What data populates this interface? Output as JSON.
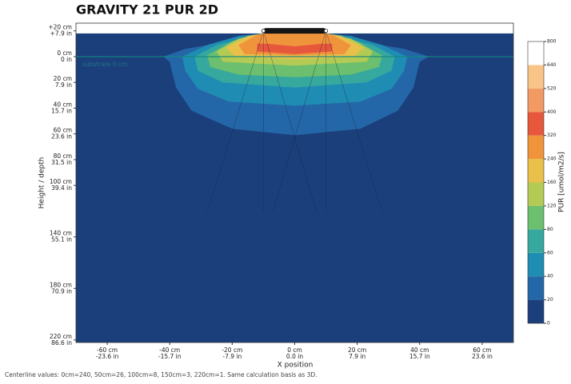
{
  "chart_data": {
    "type": "contour",
    "title": "GRAVITY 21 PUR 2D",
    "x_label": "X position",
    "y_label": "Height / depth",
    "colorbar_label": "PUR [umol/m2/s]",
    "annotation": "substrate 0 cm",
    "footnote": "Centerline values: 0cm=240, 50cm=26, 100cm=8, 150cm=3, 220cm=1. Same calculation basis as 3D.",
    "xlim": [
      -70,
      70
    ],
    "ylim": [
      -222,
      26
    ],
    "field_top": 18,
    "xticks": [
      {
        "value": -60,
        "label": "-60 cm",
        "inch_label": "-23.6 in"
      },
      {
        "value": -40,
        "label": "-40 cm",
        "inch_label": "-15.7 in"
      },
      {
        "value": -20,
        "label": "-20 cm",
        "inch_label": "-7.9 in"
      },
      {
        "value": 0,
        "label": "0 cm",
        "inch_label": "0.0 in"
      },
      {
        "value": 20,
        "label": "20 cm",
        "inch_label": "7.9 in"
      },
      {
        "value": 40,
        "label": "40 cm",
        "inch_label": "15.7 in"
      },
      {
        "value": 60,
        "label": "60 cm",
        "inch_label": "23.6 in"
      }
    ],
    "yticks": [
      {
        "value": 20,
        "label": "+20 cm",
        "inch_label": "+7.9 in"
      },
      {
        "value": 0,
        "label": "0 cm",
        "inch_label": "0 in"
      },
      {
        "value": -20,
        "label": "20 cm",
        "inch_label": "7.9 in"
      },
      {
        "value": -40,
        "label": "40 cm",
        "inch_label": "15.7 in"
      },
      {
        "value": -60,
        "label": "60 cm",
        "inch_label": "23.6 in"
      },
      {
        "value": -80,
        "label": "80 cm",
        "inch_label": "31.5 in"
      },
      {
        "value": -100,
        "label": "100 cm",
        "inch_label": "39.4 in"
      },
      {
        "value": -140,
        "label": "140 cm",
        "inch_label": "55.1 in"
      },
      {
        "value": -180,
        "label": "180 cm",
        "inch_label": "70.9 in"
      },
      {
        "value": -220,
        "label": "220 cm",
        "inch_label": "86.6 in"
      }
    ],
    "levels": [
      0,
      20,
      40,
      60,
      80,
      120,
      160,
      240,
      320,
      400,
      520,
      640,
      800
    ],
    "colors": [
      "#1b3f7b",
      "#2467a8",
      "#1f8db3",
      "#36a89e",
      "#6bbf6e",
      "#b3cb55",
      "#e9c04a",
      "#f0943c",
      "#e6573c",
      "#f29a64",
      "#f9c488",
      "#ffffff"
    ],
    "regions": [
      {
        "level": 20,
        "points": [
          [
            -42,
            0
          ],
          [
            -35,
            6
          ],
          [
            -23,
            11
          ],
          [
            -10,
            18
          ],
          [
            10,
            18
          ],
          [
            23,
            11
          ],
          [
            35,
            6
          ],
          [
            43,
            0
          ],
          [
            40,
            -4
          ],
          [
            38,
            -24
          ],
          [
            33,
            -42
          ],
          [
            21,
            -56
          ],
          [
            0,
            -61
          ],
          [
            -20,
            -56
          ],
          [
            -33,
            -42
          ],
          [
            -38,
            -24
          ],
          [
            -40,
            -4
          ]
        ]
      },
      {
        "level": 40,
        "points": [
          [
            -36,
            0
          ],
          [
            -28,
            9
          ],
          [
            -18,
            16
          ],
          [
            -10,
            18
          ],
          [
            10,
            18
          ],
          [
            18,
            16
          ],
          [
            28,
            9
          ],
          [
            36,
            0
          ],
          [
            35,
            -11
          ],
          [
            31,
            -25
          ],
          [
            21,
            -35
          ],
          [
            0,
            -38
          ],
          [
            -21,
            -35
          ],
          [
            -31,
            -25
          ],
          [
            -35,
            -11
          ]
        ]
      },
      {
        "level": 60,
        "points": [
          [
            -32,
            0
          ],
          [
            -25,
            9
          ],
          [
            -10,
            18
          ],
          [
            10,
            18
          ],
          [
            25,
            9
          ],
          [
            32,
            0
          ],
          [
            31,
            -11
          ],
          [
            23,
            -20
          ],
          [
            0,
            -24
          ],
          [
            -23,
            -20
          ],
          [
            -31,
            -11
          ]
        ]
      },
      {
        "level": 80,
        "points": [
          [
            -28,
            1
          ],
          [
            -20,
            12
          ],
          [
            -10,
            18
          ],
          [
            10,
            18
          ],
          [
            20,
            12
          ],
          [
            28,
            1
          ],
          [
            27,
            -8
          ],
          [
            18,
            -14
          ],
          [
            0,
            -16
          ],
          [
            -18,
            -14
          ],
          [
            -27,
            -8
          ]
        ]
      },
      {
        "level": 120,
        "points": [
          [
            -25,
            4
          ],
          [
            -18,
            14
          ],
          [
            -10,
            18
          ],
          [
            10,
            18
          ],
          [
            18,
            14
          ],
          [
            25,
            4
          ],
          [
            23,
            -4
          ],
          [
            0,
            -7
          ],
          [
            -23,
            -4
          ]
        ]
      },
      {
        "level": 160,
        "points": [
          [
            -22,
            7
          ],
          [
            -15,
            16
          ],
          [
            -10,
            18
          ],
          [
            10,
            18
          ],
          [
            15,
            16
          ],
          [
            22,
            7
          ],
          [
            19,
            0
          ],
          [
            0,
            -2
          ],
          [
            -19,
            0
          ]
        ]
      },
      {
        "level": 240,
        "points": [
          [
            -18,
            9
          ],
          [
            -12,
            17
          ],
          [
            -10,
            18
          ],
          [
            10,
            18
          ],
          [
            12,
            17
          ],
          [
            18,
            9
          ],
          [
            16,
            2
          ],
          [
            0,
            1
          ],
          [
            -16,
            2
          ]
        ]
      },
      {
        "level": 320,
        "points": [
          [
            -12,
            4
          ],
          [
            -12,
            10
          ],
          [
            -9,
            10
          ],
          [
            0,
            8
          ],
          [
            9,
            10
          ],
          [
            12,
            10
          ],
          [
            12,
            4
          ],
          [
            0,
            2
          ]
        ]
      }
    ],
    "fixture": {
      "x": [
        -10,
        10
      ],
      "y": 20
    },
    "beam_depth": -121,
    "beam_lines": [
      [
        -10,
        -28
      ],
      [
        -10,
        -10
      ],
      [
        -10,
        7
      ],
      [
        10,
        -7
      ],
      [
        10,
        10
      ],
      [
        10,
        28
      ]
    ]
  }
}
